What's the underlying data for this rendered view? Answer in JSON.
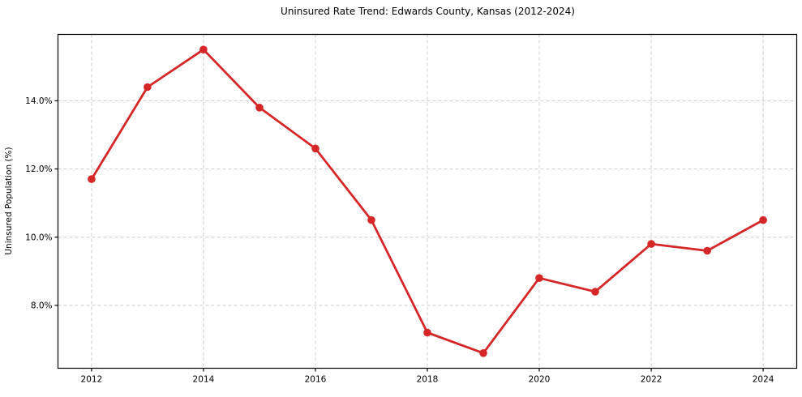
{
  "chart_data": {
    "type": "line",
    "title": "Uninsured Rate Trend: Edwards County, Kansas (2012-2024)",
    "xlabel": "",
    "ylabel": "Uninsured Population (%)",
    "x": [
      2012,
      2013,
      2014,
      2015,
      2016,
      2017,
      2018,
      2019,
      2020,
      2021,
      2022,
      2023,
      2024
    ],
    "series": [
      {
        "name": "Uninsured rate",
        "values": [
          11.7,
          14.4,
          15.5,
          13.8,
          12.6,
          10.5,
          7.2,
          6.6,
          8.8,
          8.4,
          9.8,
          9.6,
          10.5
        ]
      }
    ],
    "xticks": [
      2012,
      2014,
      2016,
      2018,
      2020,
      2022,
      2024
    ],
    "xtick_labels": [
      "2012",
      "2014",
      "2016",
      "2018",
      "2020",
      "2022",
      "2024"
    ],
    "yticks": [
      8,
      10,
      12,
      14
    ],
    "ytick_labels": [
      "8.0%",
      "10.0%",
      "12.0%",
      "14.0%"
    ],
    "xlim": [
      2011.4,
      2024.6
    ],
    "ylim": [
      6.155,
      15.945
    ],
    "grid": true,
    "grid_style": "dashed",
    "legend": "none",
    "colors": {
      "line": "#d62728",
      "marker": "#d62728",
      "grid": "#cccccc",
      "spine": "#000000",
      "tick_label": "#000000",
      "background": "#ffffff"
    }
  }
}
